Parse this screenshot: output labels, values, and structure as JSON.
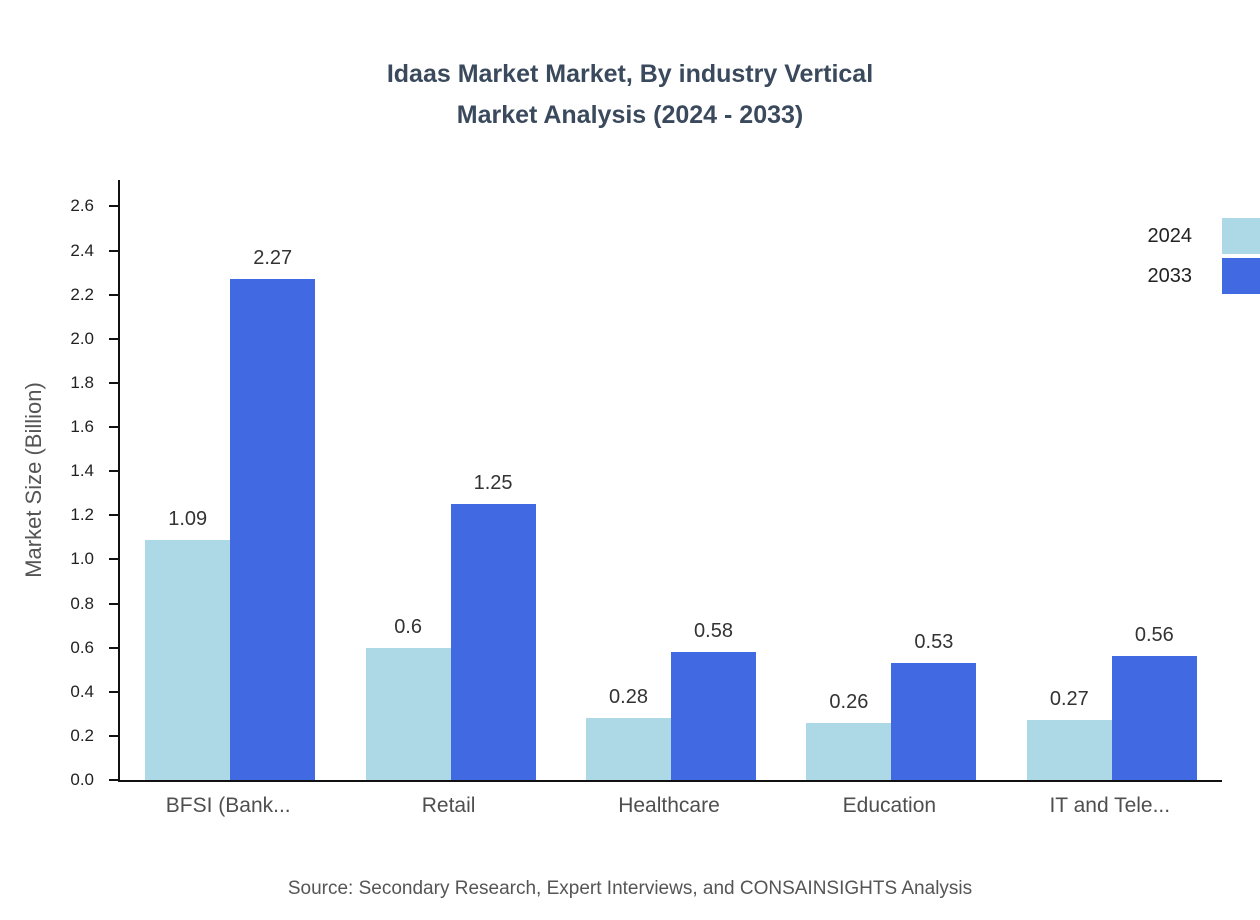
{
  "header": {
    "title_line1": "Idaas Market Market, By industry Vertical",
    "title_line2": "Market Analysis (2024 - 2033)"
  },
  "footer": {
    "source": "Source: Secondary Research, Expert Interviews, and CONSAINSIGHTS Analysis"
  },
  "colors": {
    "title": "#3a4a5c",
    "axis": "#111111",
    "series_2024": "#add8e6",
    "series_2033": "#4169e1"
  },
  "chart_data": {
    "type": "bar",
    "title": "Idaas Market Market, By industry Vertical Market Analysis (2024 - 2033)",
    "xlabel": "",
    "ylabel": "Market Size (Billion)",
    "categories": [
      "BFSI (Bank...",
      "Retail",
      "Healthcare",
      "Education",
      "IT and Tele..."
    ],
    "series": [
      {
        "name": "2024",
        "color": "#add8e6",
        "values": [
          1.09,
          0.6,
          0.28,
          0.26,
          0.27
        ]
      },
      {
        "name": "2033",
        "color": "#4169e1",
        "values": [
          2.27,
          1.25,
          0.58,
          0.53,
          0.56
        ]
      }
    ],
    "ylim": [
      0,
      2.72
    ],
    "yticks": [
      0.0,
      0.2,
      0.4,
      0.6,
      0.8,
      1.0,
      1.2,
      1.4,
      1.6,
      1.8,
      2.0,
      2.2,
      2.4,
      2.6
    ],
    "grid": false,
    "legend_position": "top-right"
  }
}
